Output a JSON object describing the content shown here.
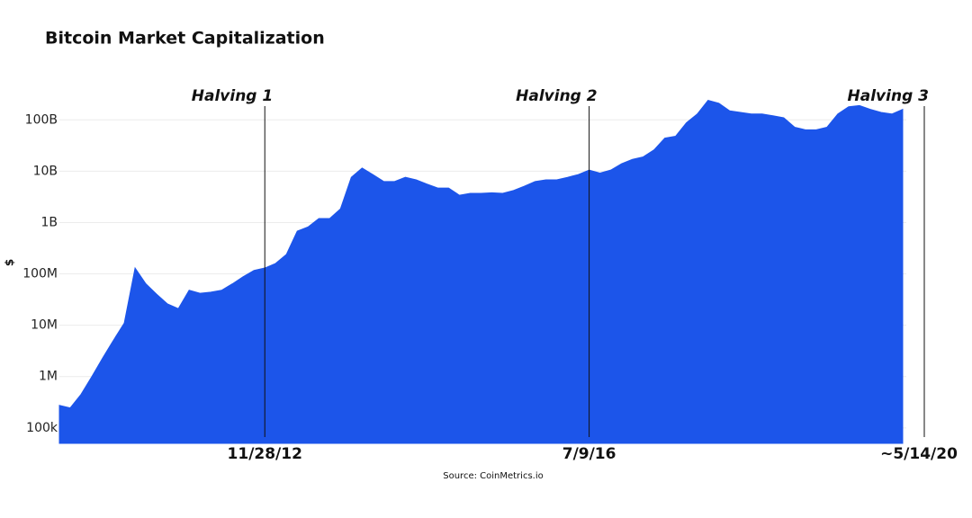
{
  "chart_data": {
    "type": "area",
    "title": "Bitcoin Market Capitalization",
    "y_label": "$",
    "source": "Source: CoinMetrics.io",
    "log_scale": true,
    "grid": true,
    "color": "#1c55ea",
    "categories": [
      null,
      null,
      null,
      null,
      null,
      null,
      null,
      null,
      null,
      null,
      null,
      null,
      null,
      null,
      null,
      null,
      null,
      null,
      null,
      "11/28/12",
      null,
      null,
      null,
      null,
      null,
      null,
      null,
      null,
      null,
      null,
      null,
      null,
      null,
      null,
      null,
      null,
      null,
      null,
      null,
      null,
      null,
      null,
      null,
      null,
      null,
      null,
      null,
      null,
      null,
      "7/9/16",
      null,
      null,
      null,
      null,
      null,
      null,
      null,
      null,
      null,
      null,
      null,
      null,
      null,
      null,
      null,
      null,
      null,
      null,
      null,
      null,
      null,
      null,
      null,
      null,
      null,
      null,
      null,
      null,
      null,
      null,
      "~5/14/20"
    ],
    "values": [
      275000,
      245000,
      450000,
      1000000,
      2300000,
      5100000,
      11000000,
      130000000,
      64000000,
      40000000,
      26000000,
      21000000,
      48000000,
      42000000,
      44000000,
      48000000,
      64000000,
      88000000,
      117000000,
      130000000,
      160000000,
      240000000,
      680000000,
      820000000,
      1200000000,
      1200000000,
      1850000000,
      7600000000,
      11500000000,
      8600000000,
      6300000000,
      6300000000,
      7600000000,
      6800000000,
      5600000000,
      4700000000,
      4700000000,
      3400000000,
      3700000000,
      3700000000,
      3800000000,
      3700000000,
      4200000000,
      5100000000,
      6300000000,
      6800000000,
      6800000000,
      7600000000,
      8600000000,
      10500000000,
      9200000000,
      10500000000,
      14000000000,
      17000000000,
      19000000000,
      26000000000,
      44000000000,
      48000000000,
      88000000000,
      130000000000,
      240000000000,
      210000000000,
      150000000000,
      140000000000,
      130000000000,
      130000000000,
      120000000000,
      110000000000,
      72000000000,
      64000000000,
      64000000000,
      72000000000,
      130000000000,
      180000000000,
      190000000000,
      160000000000,
      140000000000,
      130000000000,
      160000000000,
      null,
      null
    ],
    "annotations": [
      "Halving 1",
      "Halving 2",
      "Halving 3"
    ],
    "ylim": [
      50000,
      450000000000
    ],
    "yticks": [
      {
        "value": 100000,
        "label": "100k"
      },
      {
        "value": 1000000,
        "label": "1M"
      },
      {
        "value": 10000000,
        "label": "10M"
      },
      {
        "value": 100000000,
        "label": "100M"
      },
      {
        "value": 1000000000,
        "label": "1B"
      },
      {
        "value": 10000000000,
        "label": "10B"
      },
      {
        "value": 100000000000,
        "label": "100B"
      }
    ]
  }
}
